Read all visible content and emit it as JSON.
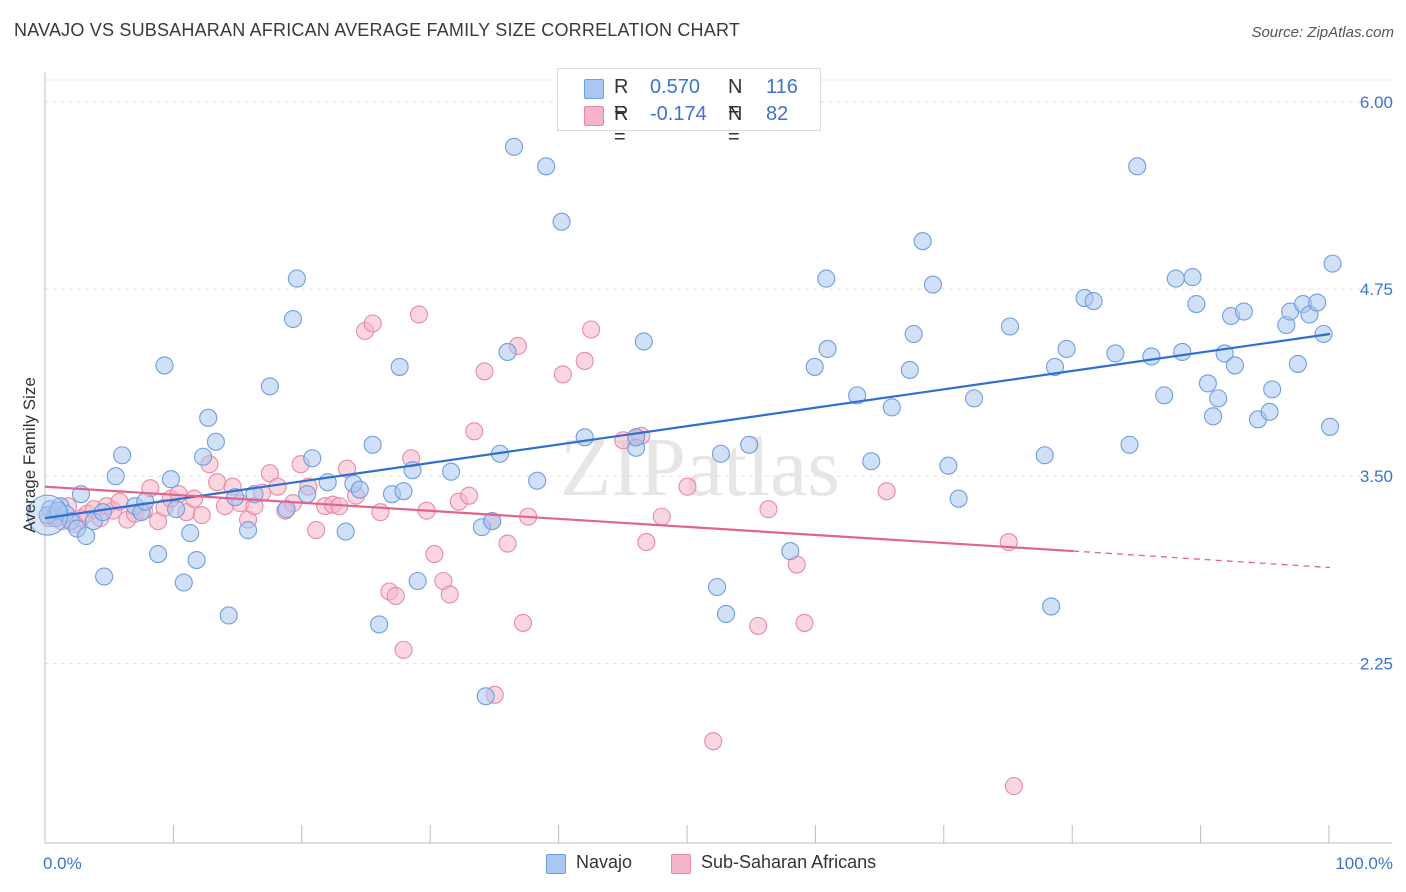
{
  "title": "NAVAJO VS SUBSAHARAN AFRICAN AVERAGE FAMILY SIZE CORRELATION CHART",
  "source": "Source: ZipAtlas.com",
  "watermark": "ZIPatlas",
  "legend": {
    "rows": [
      {
        "r_label": "R =",
        "r_value": "0.570",
        "n_label": "N =",
        "n_value": "116",
        "color": "#a9c7f0"
      },
      {
        "r_label": "R =",
        "r_value": "-0.174",
        "n_label": "N =",
        "n_value": "82",
        "color": "#f5b5c8"
      }
    ]
  },
  "bottom_legend": {
    "navajo": "Navajo",
    "subsaharan": "Sub-Saharan Africans"
  },
  "colors": {
    "navajo_fill": "#a9c7f0",
    "navajo_stroke": "#6f9ee0",
    "navajo_line": "#2f6fd1",
    "sub_fill": "#f5b5c8",
    "sub_stroke": "#e88aa8",
    "sub_line": "#e0648c",
    "tick_text": "#3b73d0",
    "grid": "#e2e2e2"
  },
  "chart_data": {
    "type": "scatter",
    "title": "NAVAJO VS SUBSAHARAN AFRICAN AVERAGE FAMILY SIZE CORRELATION CHART",
    "xlabel": "",
    "ylabel": "Average Family Size",
    "xlim": [
      0,
      100
    ],
    "ylim": [
      1.05,
      6.2
    ],
    "x_tick_labels": [
      "0.0%",
      "100.0%"
    ],
    "y_ticks": [
      2.25,
      3.5,
      4.75,
      6.0
    ],
    "y_tick_labels": [
      "2.25",
      "3.50",
      "4.75",
      "6.00"
    ],
    "grid": true,
    "legend_position": "top-center",
    "series": [
      {
        "name": "Navajo",
        "r": 0.57,
        "n": 116,
        "trend": {
          "x0": 0,
          "y0": 3.22,
          "x1": 100,
          "y1": 4.45
        },
        "points": [
          [
            0.4,
            3.28
          ],
          [
            0.8,
            3.22
          ],
          [
            1.2,
            3.3
          ],
          [
            1.6,
            3.25
          ],
          [
            2.0,
            3.2
          ],
          [
            2.5,
            3.15
          ],
          [
            2.8,
            3.38
          ],
          [
            3.2,
            3.1
          ],
          [
            3.8,
            3.2
          ],
          [
            4.5,
            3.26
          ],
          [
            4.6,
            2.83
          ],
          [
            5.5,
            3.5
          ],
          [
            6.0,
            3.64
          ],
          [
            7.0,
            3.3
          ],
          [
            7.5,
            3.26
          ],
          [
            7.8,
            3.33
          ],
          [
            8.8,
            2.98
          ],
          [
            9.3,
            4.24
          ],
          [
            9.8,
            3.48
          ],
          [
            10.2,
            3.28
          ],
          [
            10.8,
            2.79
          ],
          [
            11.3,
            3.12
          ],
          [
            11.8,
            2.94
          ],
          [
            12.3,
            3.63
          ],
          [
            12.7,
            3.89
          ],
          [
            13.3,
            3.73
          ],
          [
            14.3,
            2.57
          ],
          [
            14.8,
            3.36
          ],
          [
            15.8,
            3.14
          ],
          [
            16.3,
            3.38
          ],
          [
            17.5,
            4.1
          ],
          [
            18.8,
            3.28
          ],
          [
            19.3,
            4.55
          ],
          [
            19.6,
            4.82
          ],
          [
            20.4,
            3.38
          ],
          [
            20.8,
            3.62
          ],
          [
            22.0,
            3.46
          ],
          [
            23.4,
            3.13
          ],
          [
            24.0,
            3.45
          ],
          [
            24.5,
            3.41
          ],
          [
            25.5,
            3.71
          ],
          [
            26.0,
            2.51
          ],
          [
            27.0,
            3.38
          ],
          [
            27.6,
            4.23
          ],
          [
            27.9,
            3.4
          ],
          [
            28.6,
            3.54
          ],
          [
            29.0,
            2.8
          ],
          [
            31.6,
            3.53
          ],
          [
            34.0,
            3.16
          ],
          [
            34.3,
            2.03
          ],
          [
            34.8,
            3.2
          ],
          [
            35.4,
            3.65
          ],
          [
            36.0,
            4.33
          ],
          [
            36.5,
            5.7
          ],
          [
            38.3,
            3.47
          ],
          [
            39.0,
            5.57
          ],
          [
            40.2,
            5.2
          ],
          [
            42.0,
            3.76
          ],
          [
            46.0,
            3.69
          ],
          [
            46.0,
            3.76
          ],
          [
            46.6,
            4.4
          ],
          [
            52.3,
            2.76
          ],
          [
            52.6,
            3.65
          ],
          [
            53.0,
            2.58
          ],
          [
            54.8,
            3.71
          ],
          [
            58.0,
            3.0
          ],
          [
            59.9,
            4.23
          ],
          [
            60.8,
            4.82
          ],
          [
            60.9,
            4.35
          ],
          [
            63.2,
            4.04
          ],
          [
            64.3,
            3.6
          ],
          [
            65.9,
            3.96
          ],
          [
            67.3,
            4.21
          ],
          [
            67.6,
            4.45
          ],
          [
            68.3,
            5.07
          ],
          [
            69.1,
            4.78
          ],
          [
            70.3,
            3.57
          ],
          [
            71.1,
            3.35
          ],
          [
            72.3,
            4.02
          ],
          [
            75.1,
            4.5
          ],
          [
            77.8,
            3.64
          ],
          [
            78.3,
            2.63
          ],
          [
            78.6,
            4.23
          ],
          [
            79.5,
            4.35
          ],
          [
            80.9,
            4.69
          ],
          [
            81.6,
            4.67
          ],
          [
            83.3,
            4.32
          ],
          [
            84.4,
            3.71
          ],
          [
            85.0,
            5.57
          ],
          [
            86.1,
            4.3
          ],
          [
            87.1,
            4.04
          ],
          [
            88.0,
            4.82
          ],
          [
            88.5,
            4.33
          ],
          [
            89.3,
            4.83
          ],
          [
            89.6,
            4.65
          ],
          [
            90.5,
            4.12
          ],
          [
            90.9,
            3.9
          ],
          [
            91.3,
            4.02
          ],
          [
            91.8,
            4.32
          ],
          [
            92.3,
            4.57
          ],
          [
            92.6,
            4.24
          ],
          [
            93.3,
            4.6
          ],
          [
            94.4,
            3.88
          ],
          [
            95.3,
            3.93
          ],
          [
            95.5,
            4.08
          ],
          [
            96.6,
            4.51
          ],
          [
            96.9,
            4.6
          ],
          [
            97.5,
            4.25
          ],
          [
            97.9,
            4.65
          ],
          [
            98.4,
            4.58
          ],
          [
            99.0,
            4.66
          ],
          [
            99.5,
            4.45
          ],
          [
            100.0,
            3.83
          ],
          [
            100.2,
            4.92
          ],
          [
            0.2,
            3.24
          ],
          [
            1.0,
            3.27
          ]
        ]
      },
      {
        "name": "Sub-Saharan Africans",
        "r": -0.174,
        "n": 82,
        "trend": {
          "x0": 0,
          "y0": 3.43,
          "x1": 80,
          "y1": 3.0,
          "dash_x1": 100,
          "dash_y1": 2.89
        },
        "points": [
          [
            0.3,
            3.22
          ],
          [
            0.8,
            3.24
          ],
          [
            1.3,
            3.2
          ],
          [
            1.8,
            3.3
          ],
          [
            2.3,
            3.18
          ],
          [
            2.8,
            3.22
          ],
          [
            3.3,
            3.25
          ],
          [
            3.8,
            3.28
          ],
          [
            4.3,
            3.22
          ],
          [
            4.8,
            3.3
          ],
          [
            5.3,
            3.27
          ],
          [
            5.8,
            3.33
          ],
          [
            6.4,
            3.21
          ],
          [
            7.0,
            3.25
          ],
          [
            7.7,
            3.27
          ],
          [
            8.2,
            3.42
          ],
          [
            8.8,
            3.2
          ],
          [
            9.3,
            3.29
          ],
          [
            9.8,
            3.35
          ],
          [
            10.4,
            3.38
          ],
          [
            11.0,
            3.26
          ],
          [
            11.6,
            3.35
          ],
          [
            12.2,
            3.24
          ],
          [
            12.8,
            3.58
          ],
          [
            13.4,
            3.46
          ],
          [
            14.0,
            3.3
          ],
          [
            14.6,
            3.43
          ],
          [
            15.2,
            3.32
          ],
          [
            15.8,
            3.21
          ],
          [
            16.3,
            3.3
          ],
          [
            16.9,
            3.39
          ],
          [
            17.5,
            3.52
          ],
          [
            18.1,
            3.43
          ],
          [
            18.7,
            3.27
          ],
          [
            19.3,
            3.32
          ],
          [
            19.9,
            3.58
          ],
          [
            20.5,
            3.43
          ],
          [
            21.1,
            3.14
          ],
          [
            21.8,
            3.3
          ],
          [
            22.4,
            3.31
          ],
          [
            22.9,
            3.3
          ],
          [
            23.5,
            3.55
          ],
          [
            24.2,
            3.37
          ],
          [
            24.9,
            4.47
          ],
          [
            25.5,
            4.52
          ],
          [
            26.1,
            3.26
          ],
          [
            26.8,
            2.73
          ],
          [
            27.3,
            2.7
          ],
          [
            27.9,
            2.34
          ],
          [
            28.5,
            3.62
          ],
          [
            29.1,
            4.58
          ],
          [
            29.7,
            3.27
          ],
          [
            30.3,
            2.98
          ],
          [
            31.0,
            2.8
          ],
          [
            31.5,
            2.71
          ],
          [
            32.2,
            3.33
          ],
          [
            33.0,
            3.37
          ],
          [
            33.4,
            3.8
          ],
          [
            34.2,
            4.2
          ],
          [
            34.8,
            3.2
          ],
          [
            35.0,
            2.04
          ],
          [
            36.0,
            3.05
          ],
          [
            36.8,
            4.37
          ],
          [
            37.2,
            2.52
          ],
          [
            37.6,
            3.23
          ],
          [
            40.3,
            4.18
          ],
          [
            42.0,
            4.27
          ],
          [
            42.5,
            4.48
          ],
          [
            45.0,
            3.74
          ],
          [
            46.8,
            3.06
          ],
          [
            46.0,
            3.76
          ],
          [
            48.0,
            3.23
          ],
          [
            50.0,
            3.43
          ],
          [
            52.0,
            1.73
          ],
          [
            55.5,
            2.5
          ],
          [
            56.3,
            3.28
          ],
          [
            58.5,
            2.91
          ],
          [
            59.1,
            2.52
          ],
          [
            65.5,
            3.4
          ],
          [
            75.0,
            3.06
          ],
          [
            75.4,
            1.43
          ],
          [
            46.4,
            3.77
          ]
        ]
      }
    ]
  }
}
